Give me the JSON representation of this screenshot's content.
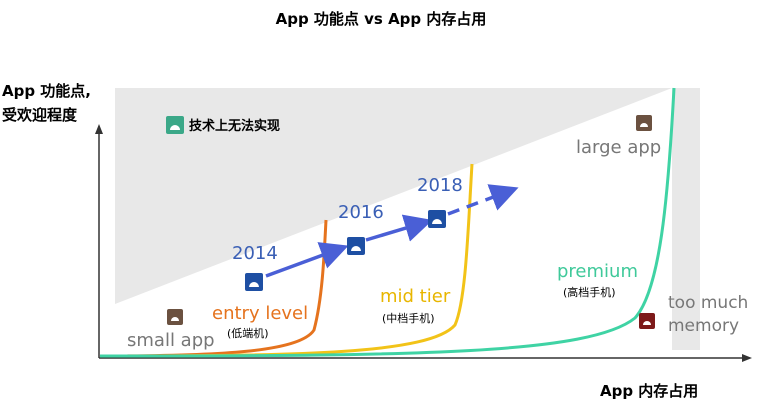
{
  "title": "App 功能点 vs App 内存占用",
  "y_axis_label": [
    "App 功能点,",
    "受欢迎程度"
  ],
  "x_axis_label": "App 内存占用",
  "region_label": "技术上无法实现",
  "years": [
    "2014",
    "2016",
    "2018"
  ],
  "tiers": [
    {
      "name": "entry level",
      "sub": "(低端机)",
      "color": "#e5731e"
    },
    {
      "name": "mid tier",
      "sub": "(中档手机)",
      "color": "#f2c318"
    },
    {
      "name": "premium",
      "sub": "(高档手机)",
      "color": "#3fd3a4"
    }
  ],
  "app_labels": {
    "small": "small app",
    "large": "large app",
    "memory": [
      "too much",
      "memory"
    ]
  },
  "colors": {
    "region": "#e6e6e6",
    "arrow": "#4a5fd6",
    "app_icon": "#1e4fa3",
    "brown_icon": "#6b5140",
    "red_icon": "#7d1a1a",
    "green_icon": "#3ba888",
    "axis": "#333333",
    "gray_text": "#777777"
  }
}
